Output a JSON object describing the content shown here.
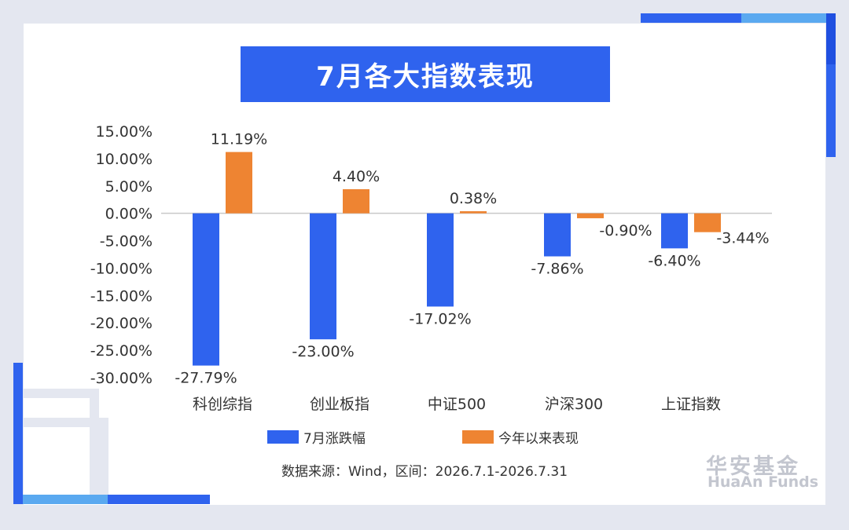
{
  "title": "7月各大指数表现",
  "chart_data": {
    "type": "bar",
    "categories": [
      "科创综指",
      "创业板指",
      "中证500",
      "沪深300",
      "上证指数"
    ],
    "series": [
      {
        "name": "7月涨跌幅",
        "values": [
          -27.79,
          -23.0,
          -17.02,
          -7.86,
          -6.4
        ],
        "labels": [
          "-27.79%",
          "-23.00%",
          "-17.02%",
          "-7.86%",
          "-6.40%"
        ],
        "color": "#2f63ee"
      },
      {
        "name": "今年以来表现",
        "values": [
          11.19,
          4.4,
          0.38,
          -0.9,
          -3.44
        ],
        "labels": [
          "11.19%",
          "4.40%",
          "0.38%",
          "-0.90%",
          "-3.44%"
        ],
        "color": "#ee8432"
      }
    ],
    "ylim": [
      -30,
      15
    ],
    "yticks": [
      15,
      10,
      5,
      0,
      -5,
      -10,
      -15,
      -20,
      -25,
      -30
    ],
    "ytick_labels": [
      "15.00%",
      "10.00%",
      "5.00%",
      "0.00%",
      "-5.00%",
      "-10.00%",
      "-15.00%",
      "-20.00%",
      "-25.00%",
      "-30.00%"
    ],
    "legend_position": "bottom",
    "grid": false
  },
  "source_text": "数据来源：Wind，区间：2026.7.1-2026.7.31",
  "logo": {
    "cn": "华安基金",
    "en": "HuaAn Funds"
  },
  "colors": {
    "accent": "#2f63ee",
    "secondary": "#ee8432",
    "light_blue": "#5aa9f0",
    "background": "#e4e7f0"
  }
}
